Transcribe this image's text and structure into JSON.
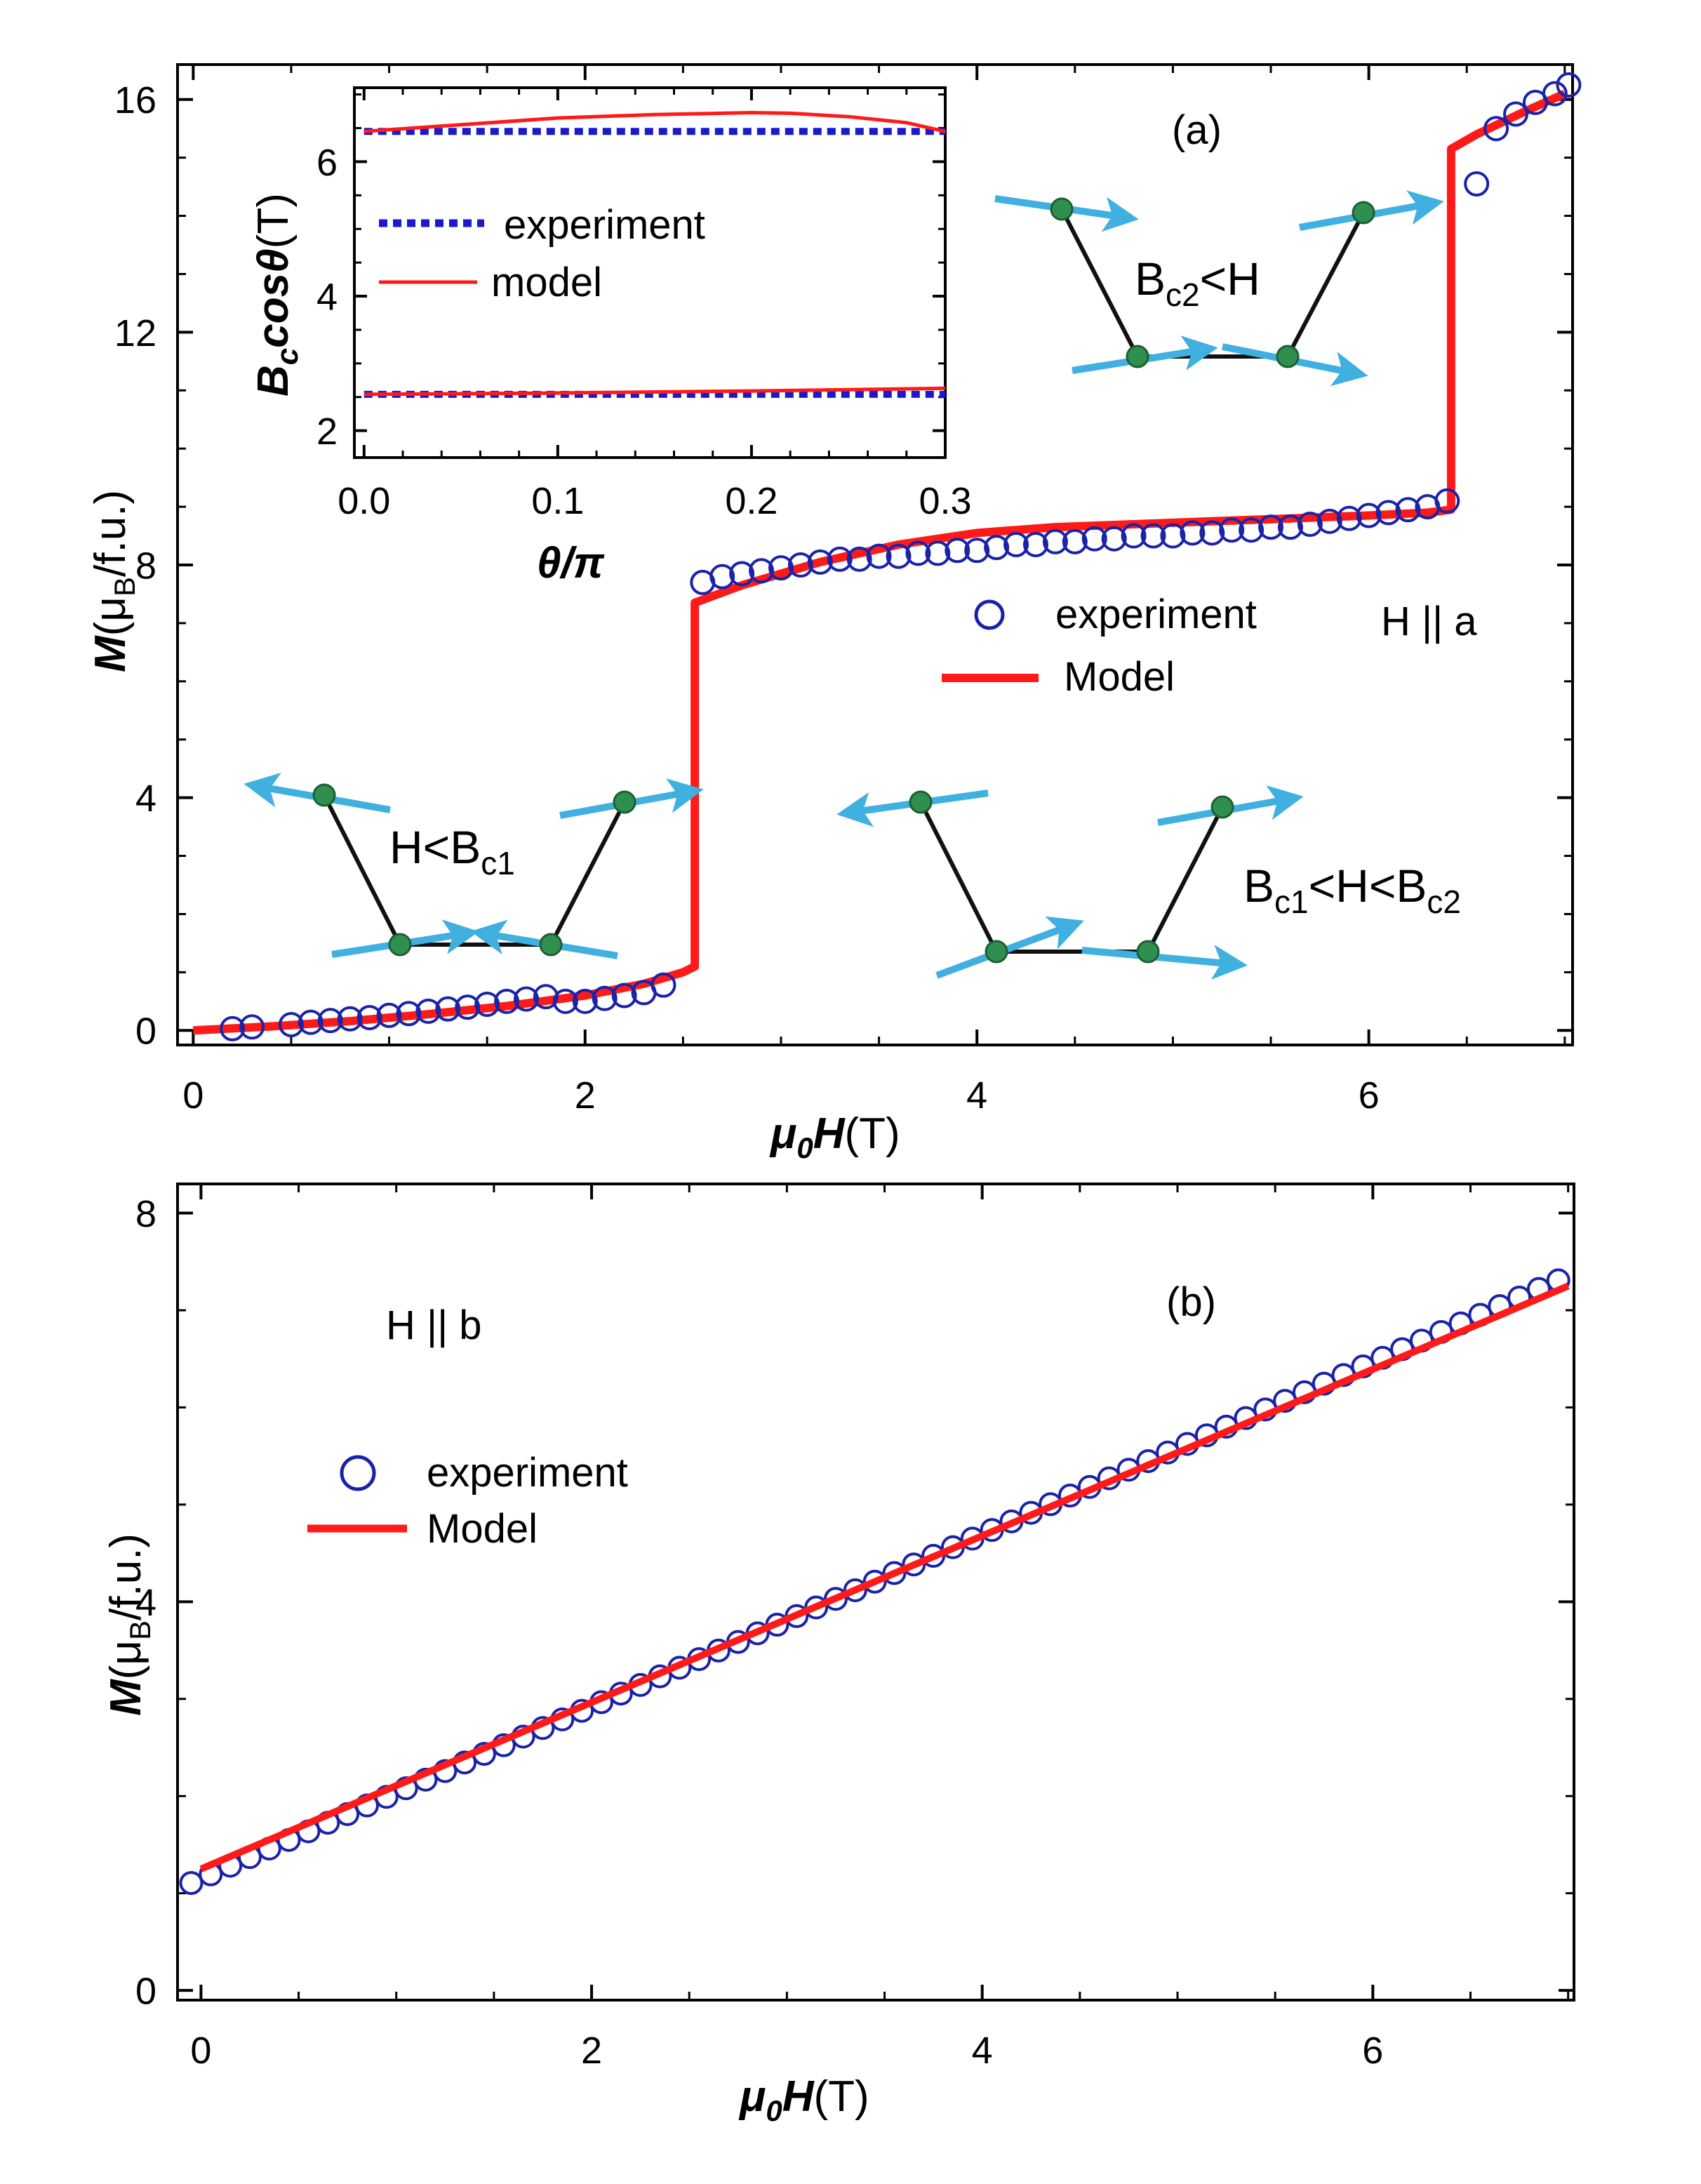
{
  "colors": {
    "experiment": "#1a23a8",
    "model": "#ff1a1a",
    "inset_experiment": "#1a1acc",
    "spin_arrow": "#40b0e0",
    "atom": "#2f8f4e",
    "bond": "#111111"
  },
  "icons": {
    "spin": "spin-arrow-icon",
    "atom": "atom-dot-icon"
  },
  "chart_data": [
    {
      "id": "panel-a",
      "type": "line",
      "panel_label": "(a)",
      "field_direction": "H || a",
      "xlabel": {
        "main": "μ",
        "sub": "0",
        "var": "H",
        "unit": "(T)"
      },
      "ylabel": {
        "var": "M",
        "pre": "(μ",
        "sub": "B",
        "post": "/f.u.)"
      },
      "xlim": [
        -0.08,
        7.04
      ],
      "ylim": [
        -0.25,
        16.6
      ],
      "xticks": [
        0,
        2,
        4,
        6
      ],
      "yticks": [
        0,
        4,
        8,
        12,
        16
      ],
      "xtick_labels": [
        "0",
        "2",
        "4",
        "6"
      ],
      "ytick_labels": [
        "0",
        "4",
        "8",
        "12",
        "16"
      ],
      "legend": {
        "position": "center-right",
        "experiment": "experiment",
        "model": "Model"
      },
      "series": [
        {
          "name": "experiment",
          "style": "open-circle",
          "x": [
            0.2,
            0.3,
            0.5,
            0.6,
            0.7,
            0.8,
            0.9,
            1.0,
            1.1,
            1.2,
            1.3,
            1.4,
            1.5,
            1.6,
            1.7,
            1.8,
            1.9,
            2.0,
            2.1,
            2.2,
            2.3,
            2.4,
            2.6,
            2.7,
            2.8,
            2.9,
            3.0,
            3.1,
            3.2,
            3.3,
            3.4,
            3.5,
            3.6,
            3.7,
            3.8,
            3.9,
            4.0,
            4.1,
            4.2,
            4.3,
            4.4,
            4.5,
            4.6,
            4.7,
            4.8,
            4.9,
            5.0,
            5.1,
            5.2,
            5.3,
            5.4,
            5.5,
            5.6,
            5.7,
            5.8,
            5.9,
            6.0,
            6.1,
            6.2,
            6.3,
            6.4,
            6.55,
            6.65,
            6.75,
            6.85,
            6.95,
            7.02
          ],
          "y": [
            0.03,
            0.06,
            0.1,
            0.14,
            0.17,
            0.2,
            0.22,
            0.26,
            0.29,
            0.33,
            0.37,
            0.4,
            0.45,
            0.5,
            0.54,
            0.58,
            0.5,
            0.5,
            0.55,
            0.6,
            0.65,
            0.78,
            7.7,
            7.8,
            7.85,
            7.9,
            7.95,
            8.0,
            8.05,
            8.1,
            8.1,
            8.15,
            8.15,
            8.2,
            8.2,
            8.25,
            8.25,
            8.3,
            8.35,
            8.35,
            8.4,
            8.4,
            8.45,
            8.45,
            8.5,
            8.5,
            8.5,
            8.55,
            8.55,
            8.6,
            8.6,
            8.65,
            8.65,
            8.7,
            8.75,
            8.8,
            8.85,
            8.9,
            8.95,
            9.0,
            9.1,
            14.55,
            15.5,
            15.75,
            15.95,
            16.1,
            16.25
          ]
        },
        {
          "name": "Model",
          "style": "line",
          "x": [
            0,
            0.4,
            0.8,
            1.2,
            1.6,
            2.0,
            2.3,
            2.5,
            2.56,
            2.56,
            2.8,
            3.2,
            3.6,
            4.0,
            4.4,
            4.8,
            5.2,
            5.6,
            6.0,
            6.3,
            6.42,
            6.42,
            6.55,
            6.8,
            7.0
          ],
          "y": [
            0,
            0.07,
            0.16,
            0.28,
            0.42,
            0.6,
            0.8,
            1.0,
            1.1,
            7.35,
            7.65,
            8.05,
            8.35,
            8.55,
            8.65,
            8.7,
            8.75,
            8.8,
            8.85,
            8.9,
            8.95,
            15.15,
            15.4,
            15.8,
            16.1
          ]
        }
      ],
      "annotations": {
        "state_low": {
          "main": "H<B",
          "sub": "c1",
          "rest": ""
        },
        "state_mid": {
          "pre": "B",
          "sub1": "c1",
          "mid": "<H<B",
          "sub2": "c2"
        },
        "state_high": {
          "pre": "B",
          "sub": "c2",
          "rest": "<H"
        }
      }
    },
    {
      "id": "panel-a-inset",
      "type": "line",
      "xlabel": "θ/π",
      "ylabel": {
        "var": "B",
        "sub": "c",
        "fn": "cosθ",
        "unit": "(T)"
      },
      "xlim": [
        -0.005,
        0.3
      ],
      "ylim": [
        1.6,
        7.1
      ],
      "xticks": [
        0.0,
        0.1,
        0.2,
        0.3
      ],
      "yticks": [
        2,
        4,
        6
      ],
      "xtick_labels": [
        "0.0",
        "0.1",
        "0.2",
        "0.3"
      ],
      "ytick_labels": [
        "2",
        "4",
        "6"
      ],
      "legend": {
        "position": "left",
        "experiment": "experiment",
        "model": "model"
      },
      "series": [
        {
          "name": "experiment upper",
          "style": "dotted",
          "x": [
            0.0,
            0.3
          ],
          "y": [
            6.45,
            6.45
          ]
        },
        {
          "name": "experiment lower",
          "style": "dotted",
          "x": [
            0.0,
            0.3
          ],
          "y": [
            2.54,
            2.54
          ]
        },
        {
          "name": "model upper",
          "style": "line",
          "x": [
            0.0,
            0.05,
            0.1,
            0.15,
            0.2,
            0.22,
            0.25,
            0.28,
            0.3
          ],
          "y": [
            6.45,
            6.55,
            6.65,
            6.7,
            6.73,
            6.72,
            6.67,
            6.58,
            6.45
          ]
        },
        {
          "name": "model lower",
          "style": "line",
          "x": [
            0.0,
            0.1,
            0.2,
            0.3
          ],
          "y": [
            2.54,
            2.56,
            2.59,
            2.63
          ]
        }
      ]
    },
    {
      "id": "panel-b",
      "type": "line",
      "panel_label": "(b)",
      "field_direction": "H || b",
      "xlabel": {
        "main": "μ",
        "sub": "0",
        "var": "H",
        "unit": "(T)"
      },
      "ylabel": {
        "var": "M",
        "pre": "(μ",
        "sub": "B",
        "post": "/f.u.)"
      },
      "xlim": [
        -0.12,
        7.03
      ],
      "ylim": [
        -0.1,
        8.3
      ],
      "xticks": [
        0,
        2,
        4,
        6
      ],
      "yticks": [
        0,
        4,
        8
      ],
      "xtick_labels": [
        "0",
        "2",
        "4",
        "6"
      ],
      "ytick_labels": [
        "0",
        "4",
        "8"
      ],
      "legend": {
        "position": "left",
        "experiment": "experiment",
        "model": "Model"
      },
      "experiment_fit": {
        "slope": 0.886,
        "intercept": 1.15,
        "x_start": -0.05,
        "x_end": 7.0,
        "step": 0.1
      },
      "series": [
        {
          "name": "Model",
          "style": "line",
          "x": [
            0.0,
            7.0
          ],
          "y": [
            1.25,
            7.25
          ]
        }
      ]
    }
  ]
}
